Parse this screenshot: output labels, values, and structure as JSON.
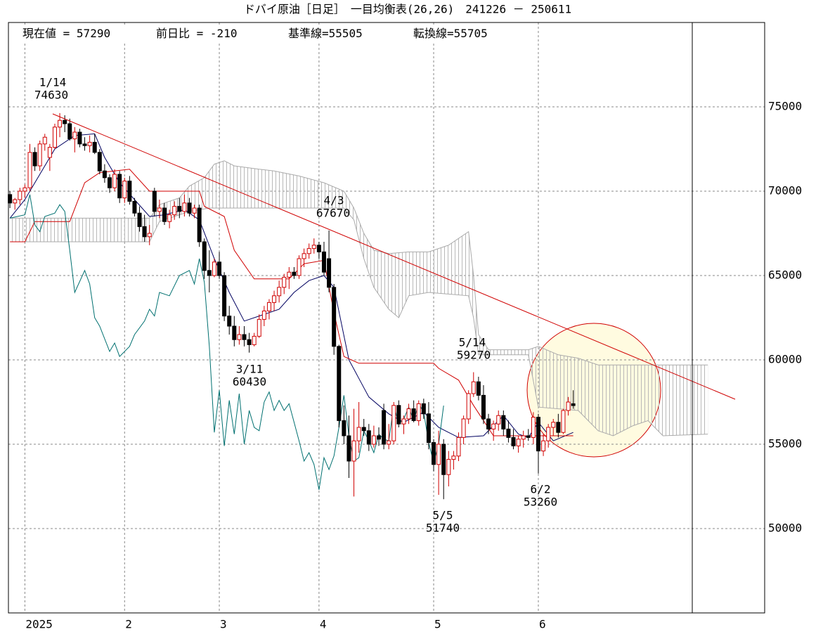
{
  "chart_data": {
    "type": "candlestick",
    "title": "ドバイ原油［日足］　一目均衡表(26,26)　241226 － 250611",
    "info": [
      {
        "label": "現在値 =",
        "value": 57290
      },
      {
        "label": "前日比 =",
        "value": -210
      },
      {
        "label": "基準線=",
        "value": 55505
      },
      {
        "label": "転換線=",
        "value": 55705
      }
    ],
    "annotations": [
      {
        "date": "1/14",
        "value": 74630
      },
      {
        "date": "4/3",
        "value": 67670
      },
      {
        "date": "3/11",
        "value": 60430
      },
      {
        "date": "5/14",
        "value": 59270
      },
      {
        "date": "5/5",
        "value": 51740
      },
      {
        "date": "6/2",
        "value": 53260
      }
    ],
    "xlim": [
      -0.3,
      151.4
    ],
    "xticks": [
      {
        "value": 3,
        "label": "2025"
      },
      {
        "value": 23,
        "label": "2"
      },
      {
        "value": 42,
        "label": "3"
      },
      {
        "value": 62,
        "label": "4"
      },
      {
        "value": 85,
        "label": "5"
      },
      {
        "value": 106,
        "label": "6"
      }
    ],
    "ylim": [
      45000,
      80000
    ],
    "yticks": [
      50000,
      55000,
      60000,
      65000,
      70000,
      75000
    ],
    "grid": true,
    "up_color": "#d00000",
    "down_color": "#000000",
    "x": [
      0,
      1,
      2,
      3,
      4,
      5,
      6,
      7,
      8,
      9,
      10,
      11,
      12,
      13,
      14,
      15,
      16,
      17,
      18,
      19,
      20,
      21,
      22,
      23,
      24,
      25,
      26,
      27,
      28,
      29,
      30,
      31,
      32,
      33,
      34,
      35,
      36,
      37,
      38,
      39,
      40,
      41,
      42,
      43,
      44,
      45,
      46,
      47,
      48,
      49,
      50,
      51,
      52,
      53,
      54,
      55,
      56,
      57,
      58,
      59,
      60,
      61,
      62,
      63,
      64,
      65,
      66,
      67,
      68,
      69,
      70,
      71,
      72,
      73,
      74,
      75,
      76,
      77,
      78,
      79,
      80,
      81,
      82,
      83,
      84,
      85,
      86,
      87,
      88,
      89,
      90,
      91,
      92,
      93,
      94,
      95,
      96,
      97,
      98,
      99,
      100,
      101,
      102,
      103,
      104,
      105,
      106,
      107,
      108,
      109,
      110,
      111,
      112,
      113
    ],
    "open": [
      69800,
      69300,
      69500,
      70000,
      70200,
      72300,
      71500,
      72800,
      72000,
      72600,
      73800,
      74200,
      74000,
      73100,
      73500,
      72800,
      72700,
      72900,
      72300,
      71200,
      70800,
      70200,
      71000,
      69600,
      70600,
      69400,
      68700,
      67900,
      67300,
      70000,
      68800,
      69000,
      68200,
      68600,
      69100,
      68800,
      69300,
      68700,
      69000,
      67000,
      65300,
      65000,
      65800,
      65000,
      62600,
      62000,
      61200,
      61500,
      61200,
      60900,
      61400,
      62400,
      62900,
      63400,
      63800,
      64300,
      64900,
      65200,
      65000,
      66000,
      66300,
      66600,
      66800,
      66400,
      66000,
      64300,
      60800,
      56400,
      55500,
      54000,
      55200,
      56000,
      55800,
      55000,
      55500,
      57000,
      55000,
      55200,
      57300,
      56200,
      56500,
      57100,
      56400,
      57400,
      56800,
      55100,
      53800,
      55000,
      53200,
      54100,
      54300,
      55400,
      56500,
      58000,
      58700,
      57900,
      56500,
      55900,
      56200,
      56700,
      55900,
      55400,
      54900,
      55300,
      55500,
      55400,
      56600,
      54600,
      55200,
      56000,
      56300,
      55700,
      57000,
      57400
    ],
    "high": [
      70000,
      69600,
      70200,
      70400,
      72800,
      72600,
      73000,
      73400,
      72800,
      74000,
      74630,
      74500,
      74300,
      73800,
      73700,
      73200,
      73300,
      73400,
      72500,
      71600,
      71000,
      71300,
      71200,
      70800,
      70900,
      69600,
      69100,
      68600,
      68000,
      70200,
      69500,
      69300,
      68900,
      69400,
      69600,
      69800,
      69600,
      69200,
      69200,
      67200,
      66500,
      66000,
      66400,
      65200,
      63200,
      62600,
      62000,
      62000,
      61600,
      61600,
      62700,
      63200,
      63600,
      64100,
      64700,
      65100,
      65500,
      65500,
      66200,
      66600,
      66900,
      67200,
      67000,
      67000,
      67670,
      64500,
      60900,
      57300,
      56700,
      57100,
      57500,
      56500,
      56200,
      56100,
      56000,
      57400,
      56200,
      57500,
      57600,
      56700,
      57400,
      57600,
      57600,
      57700,
      57500,
      55300,
      55800,
      55300,
      54600,
      54600,
      55700,
      56700,
      58200,
      59270,
      59000,
      58500,
      56800,
      56400,
      57000,
      57000,
      56400,
      55900,
      55500,
      55800,
      55900,
      56900,
      56800,
      55600,
      56200,
      56500,
      56800,
      57100,
      57800,
      58200
    ],
    "low": [
      69000,
      68900,
      69200,
      69600,
      70000,
      71200,
      71200,
      72400,
      71200,
      72500,
      73200,
      73500,
      73000,
      72300,
      72600,
      72400,
      72300,
      72200,
      71000,
      70500,
      69900,
      70000,
      69300,
      69300,
      69200,
      68500,
      67600,
      67000,
      66800,
      68500,
      68400,
      68000,
      67800,
      68300,
      68400,
      68500,
      68500,
      68400,
      66700,
      64800,
      64000,
      64900,
      64800,
      62300,
      61500,
      60800,
      60900,
      60800,
      60430,
      60800,
      61300,
      62000,
      62400,
      62900,
      63400,
      63900,
      64200,
      64800,
      64800,
      65500,
      66000,
      66300,
      66000,
      65000,
      64000,
      60300,
      56000,
      55000,
      53000,
      51900,
      54500,
      55500,
      54600,
      54800,
      54900,
      54700,
      54700,
      55000,
      56000,
      55600,
      56200,
      56300,
      56100,
      56500,
      54700,
      53400,
      52000,
      51740,
      52500,
      53500,
      54000,
      55000,
      56200,
      57800,
      57600,
      56200,
      55600,
      55200,
      55800,
      55500,
      55100,
      54700,
      54500,
      54800,
      55200,
      55000,
      53260,
      54300,
      54800,
      55500,
      55400,
      55600,
      56700,
      57100
    ],
    "close": [
      69300,
      69500,
      70000,
      70200,
      72300,
      71500,
      72800,
      73200,
      72600,
      73800,
      74200,
      74000,
      73100,
      73500,
      72800,
      72700,
      72900,
      72300,
      71200,
      70800,
      70200,
      71000,
      69600,
      70600,
      69400,
      68700,
      67900,
      67300,
      67500,
      68800,
      69000,
      68200,
      68600,
      69100,
      68800,
      69300,
      68700,
      69000,
      67000,
      65300,
      65000,
      65800,
      65000,
      62600,
      62000,
      61200,
      61500,
      61200,
      60900,
      61400,
      62400,
      62900,
      63400,
      63800,
      64300,
      64900,
      65200,
      65000,
      66000,
      66300,
      66600,
      66800,
      66400,
      65200,
      64300,
      60800,
      56400,
      55500,
      54000,
      55200,
      56000,
      55800,
      55000,
      55500,
      55300,
      55000,
      55200,
      57300,
      56200,
      56500,
      57100,
      56400,
      57400,
      56800,
      55100,
      53800,
      55000,
      53200,
      54100,
      54300,
      55400,
      56500,
      58000,
      58700,
      57900,
      56500,
      55900,
      56200,
      56700,
      55900,
      55400,
      54900,
      55300,
      55500,
      55400,
      56600,
      54600,
      55200,
      56000,
      56300,
      55700,
      57000,
      57500,
      57290
    ],
    "overlays": [
      {
        "color": "#000060",
        "x": [
          0,
          3,
          6,
          9,
          13,
          17,
          19,
          22,
          25,
          28,
          31,
          35,
          38,
          41,
          44,
          47,
          50,
          54,
          57,
          60,
          63,
          65,
          68,
          72,
          76,
          79,
          83,
          86,
          90,
          95,
          97,
          99,
          102,
          104,
          106,
          109,
          113
        ],
        "values": [
          68400,
          69500,
          71000,
          72500,
          73300,
          73400,
          72000,
          70500,
          69500,
          68500,
          68600,
          68900,
          68300,
          66000,
          64000,
          62300,
          62600,
          63000,
          64000,
          64700,
          65000,
          64300,
          60000,
          57800,
          56800,
          56300,
          56900,
          56000,
          55400,
          55500,
          56100,
          56700,
          55600,
          55400,
          56300,
          55200,
          55700
        ]
      },
      {
        "color": "#d00000",
        "x": [
          0,
          3,
          5,
          12,
          15,
          18,
          24,
          28,
          38,
          39,
          43,
          45,
          49,
          56,
          59,
          63,
          65,
          67,
          70,
          85,
          86,
          90,
          93,
          97,
          113
        ],
        "values": [
          67000,
          67000,
          68200,
          68200,
          70500,
          71100,
          71300,
          70000,
          70000,
          69100,
          68500,
          66500,
          64800,
          64800,
          65700,
          65900,
          62800,
          60200,
          59800,
          59800,
          59500,
          58800,
          57300,
          55500,
          55500
        ]
      },
      {
        "color": "#007070",
        "x": [
          0,
          3,
          4,
          5,
          6,
          7,
          9,
          10,
          11,
          12,
          13,
          15,
          16,
          17,
          18,
          20,
          21,
          22,
          24,
          25,
          27,
          28,
          29,
          30,
          32,
          34,
          36,
          37,
          38,
          39,
          40,
          41,
          42,
          43,
          44,
          45,
          46,
          47,
          48,
          49,
          50,
          51,
          52,
          53,
          54,
          55,
          56,
          57,
          58,
          59,
          60,
          61,
          62,
          63,
          64,
          65,
          66,
          67,
          68,
          69,
          70,
          71,
          72,
          73,
          74,
          75,
          76,
          77,
          78,
          79,
          80,
          81,
          82,
          83,
          84,
          85,
          86,
          87
        ],
        "values": [
          68400,
          68600,
          69800,
          68000,
          67600,
          68500,
          68700,
          69200,
          68800,
          66500,
          64000,
          65300,
          64500,
          62500,
          62000,
          60500,
          61000,
          60200,
          60800,
          61500,
          62300,
          63000,
          62600,
          64000,
          63800,
          65000,
          65300,
          64500,
          66000,
          64600,
          60800,
          55700,
          58200,
          54900,
          57600,
          55600,
          58000,
          55000,
          57000,
          56000,
          55800,
          57500,
          58100,
          57000,
          57600,
          57000,
          57400,
          56300,
          55200,
          54000,
          54500,
          53800,
          52300,
          54200,
          53500,
          54300,
          56000,
          57900,
          55500,
          54000,
          54200,
          55800,
          55200,
          54500,
          55600,
          55300,
          55200,
          57300,
          56200,
          56500,
          57200,
          56400,
          57400,
          56900,
          55100,
          53900,
          55000,
          57290
        ]
      }
    ],
    "cloud": {
      "color": "#aaaaaa",
      "span_a_x": [
        0,
        28,
        30,
        34,
        36,
        39,
        41,
        43,
        45,
        50,
        53,
        58,
        63,
        67,
        69,
        71,
        73,
        76,
        80,
        84,
        88,
        92,
        93,
        94,
        96,
        104,
        106,
        110,
        114,
        118,
        140
      ],
      "span_a": [
        68400,
        68400,
        69200,
        69600,
        70300,
        70800,
        71600,
        71800,
        71500,
        71300,
        71200,
        70900,
        70500,
        70000,
        69000,
        67500,
        66500,
        66300,
        66400,
        66400,
        66800,
        67600,
        65000,
        61500,
        60600,
        60600,
        60800,
        60300,
        60100,
        59700,
        59700
      ],
      "span_b_x": [
        0,
        28,
        30,
        36,
        40,
        67,
        69,
        71,
        73,
        76,
        78,
        80,
        84,
        88,
        92,
        93,
        94,
        104,
        106,
        114,
        118,
        121,
        125,
        128,
        131,
        140
      ],
      "span_b": [
        67000,
        67000,
        68200,
        68800,
        69000,
        69000,
        68300,
        66000,
        64300,
        63000,
        62500,
        63800,
        64000,
        63900,
        63800,
        62500,
        60300,
        60300,
        57200,
        57000,
        55800,
        55500,
        56100,
        56400,
        55500,
        55600
      ]
    }
  }
}
